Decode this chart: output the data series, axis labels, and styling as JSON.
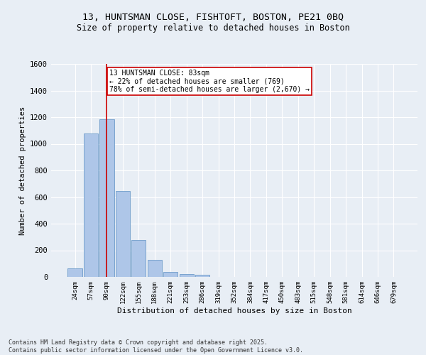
{
  "title_line1": "13, HUNTSMAN CLOSE, FISHTOFT, BOSTON, PE21 0BQ",
  "title_line2": "Size of property relative to detached houses in Boston",
  "xlabel": "Distribution of detached houses by size in Boston",
  "ylabel": "Number of detached properties",
  "categories": [
    "24sqm",
    "57sqm",
    "90sqm",
    "122sqm",
    "155sqm",
    "188sqm",
    "221sqm",
    "253sqm",
    "286sqm",
    "319sqm",
    "352sqm",
    "384sqm",
    "417sqm",
    "450sqm",
    "483sqm",
    "515sqm",
    "548sqm",
    "581sqm",
    "614sqm",
    "646sqm",
    "679sqm"
  ],
  "values": [
    65,
    1080,
    1185,
    645,
    275,
    130,
    40,
    20,
    15,
    0,
    0,
    0,
    0,
    0,
    0,
    0,
    0,
    0,
    0,
    0,
    0
  ],
  "bar_color": "#aec6e8",
  "bar_edge_color": "#5a8fc2",
  "vline_x": 2.0,
  "vline_color": "#cc0000",
  "annotation_text": "13 HUNTSMAN CLOSE: 83sqm\n← 22% of detached houses are smaller (769)\n78% of semi-detached houses are larger (2,670) →",
  "annotation_box_color": "#ffffff",
  "annotation_box_edge": "#cc0000",
  "ylim": [
    0,
    1600
  ],
  "yticks": [
    0,
    200,
    400,
    600,
    800,
    1000,
    1200,
    1400,
    1600
  ],
  "bg_color": "#e8eef5",
  "grid_color": "#ffffff",
  "footer_line1": "Contains HM Land Registry data © Crown copyright and database right 2025.",
  "footer_line2": "Contains public sector information licensed under the Open Government Licence v3.0."
}
